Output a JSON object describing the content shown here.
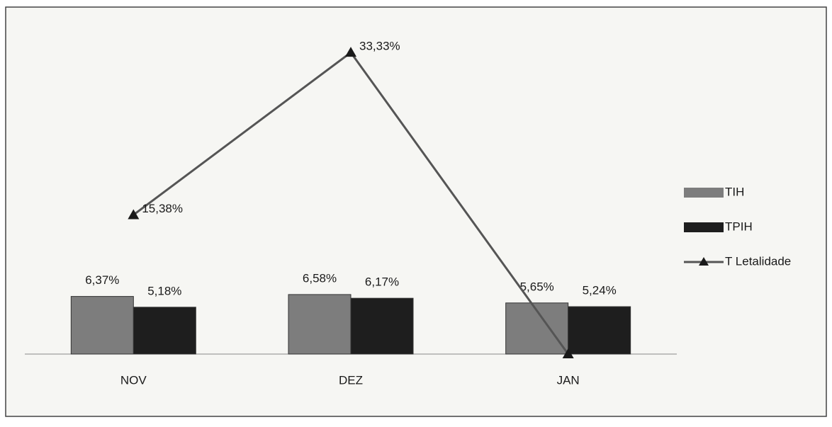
{
  "chart_data": {
    "type": "bar-line",
    "categories": [
      "NOV",
      "DEZ",
      "JAN"
    ],
    "series": [
      {
        "name": "TIH",
        "type": "bar",
        "color": "#7d7d7d",
        "values": [
          6.37,
          6.58,
          5.65
        ],
        "value_labels": [
          "6,37%",
          "6,58%",
          "5,65%"
        ]
      },
      {
        "name": "TPIH",
        "type": "bar",
        "color": "#1e1e1e",
        "values": [
          5.18,
          6.17,
          5.24
        ],
        "value_labels": [
          "5,18%",
          "6,17%",
          "5,24%"
        ]
      },
      {
        "name": "T Letalidade",
        "type": "line",
        "color": "#555555",
        "values": [
          15.38,
          33.33,
          0
        ],
        "value_labels": [
          "15,38%",
          "33,33%",
          null
        ]
      }
    ],
    "ylim": [
      0,
      36
    ],
    "legend": "right"
  }
}
